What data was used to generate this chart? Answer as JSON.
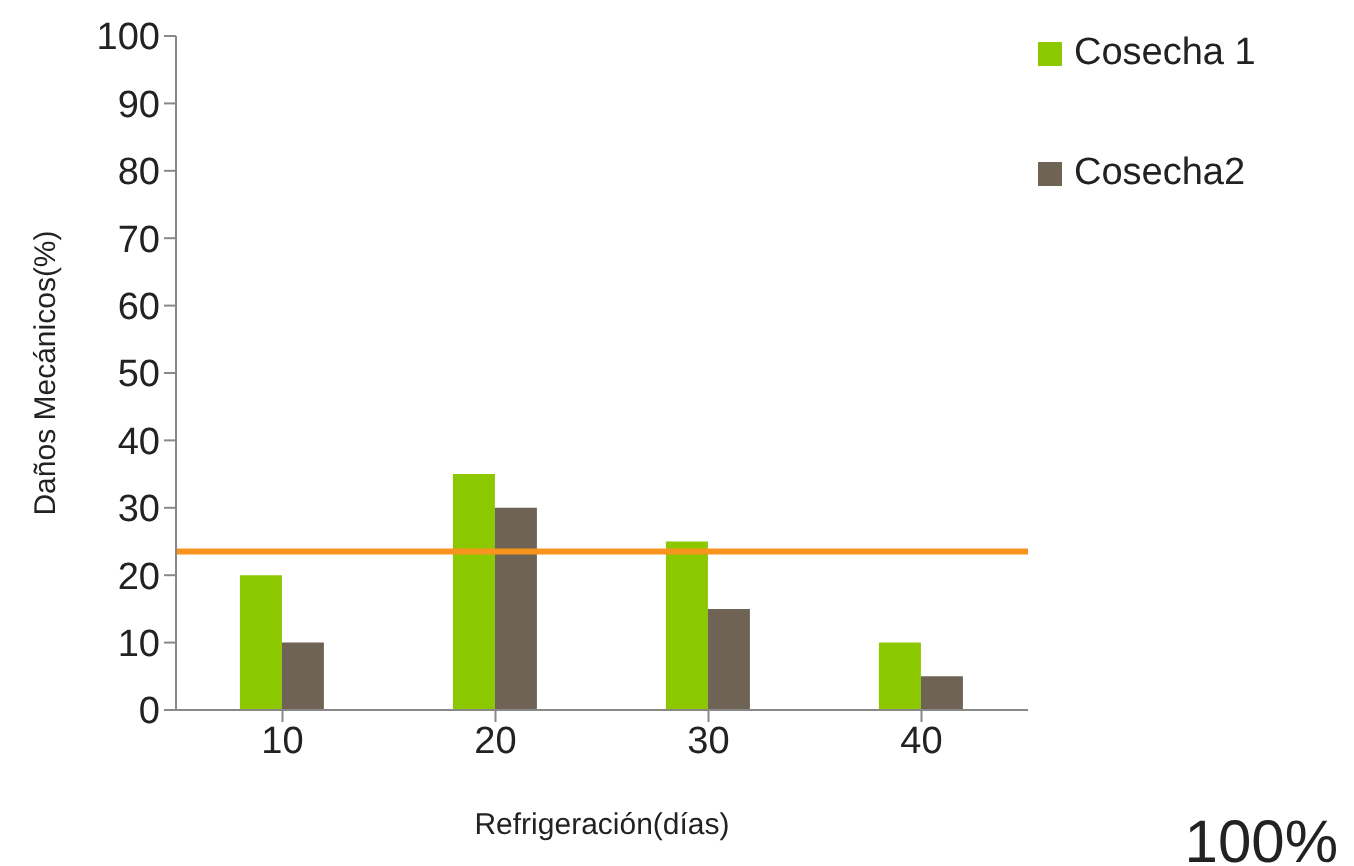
{
  "chart_data": {
    "type": "bar",
    "xlabel": "Refrigeración(días)",
    "ylabel": "Daños Mecánicos(%)",
    "categories": [
      "10",
      "20",
      "30",
      "40"
    ],
    "series": [
      {
        "name": "Cosecha 1",
        "color": "#8cc800",
        "values": [
          20,
          35,
          25,
          10
        ]
      },
      {
        "name": "Cosecha2",
        "color": "#6e6354",
        "values": [
          10,
          30,
          15,
          5
        ]
      }
    ],
    "ylim": [
      0,
      100
    ],
    "yticks": [
      0,
      10,
      20,
      30,
      40,
      50,
      60,
      70,
      80,
      90,
      100
    ],
    "legend": "top right",
    "ref_lines": [
      {
        "axis": "y",
        "value": 23.5,
        "color": "#f7941d"
      }
    ],
    "annotations": [
      "100%"
    ]
  }
}
